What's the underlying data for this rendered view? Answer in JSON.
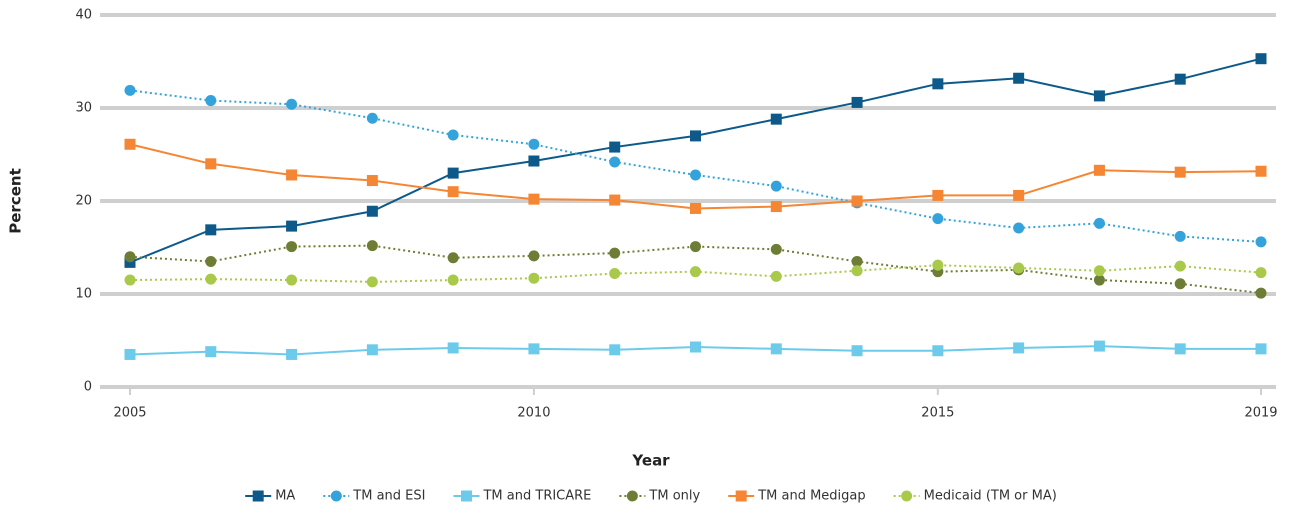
{
  "chart_data": {
    "type": "line",
    "x_label": "Year",
    "y_label": "Percent",
    "x": [
      2005,
      2006,
      2007,
      2008,
      2009,
      2010,
      2011,
      2012,
      2013,
      2014,
      2015,
      2016,
      2017,
      2018,
      2019
    ],
    "xlim": [
      2005,
      2019
    ],
    "xticks": [
      2005,
      2010,
      2015,
      2019
    ],
    "ylim": [
      0,
      40
    ],
    "yticks": [
      0,
      10,
      20,
      30,
      40
    ],
    "grid": true,
    "legend": "bottom",
    "series": [
      {
        "name": "MA",
        "color": "#0d5a8a",
        "marker": "square",
        "dashed": false,
        "values": [
          13.4,
          16.9,
          17.3,
          18.9,
          23.0,
          24.3,
          25.8,
          27.0,
          28.8,
          30.6,
          32.6,
          33.2,
          31.3,
          33.1,
          35.3
        ]
      },
      {
        "name": "TM and ESI",
        "color": "#34a3dc",
        "marker": "circle",
        "dashed": true,
        "values": [
          31.9,
          30.8,
          30.4,
          28.9,
          27.1,
          26.1,
          24.2,
          22.8,
          21.6,
          19.8,
          18.1,
          17.1,
          17.6,
          16.2,
          15.6
        ]
      },
      {
        "name": "TM and TRICARE",
        "color": "#6ccbeb",
        "marker": "square",
        "dashed": false,
        "values": [
          3.5,
          3.8,
          3.5,
          4.0,
          4.2,
          4.1,
          4.0,
          4.3,
          4.1,
          3.9,
          3.9,
          4.2,
          4.4,
          4.1,
          4.1
        ]
      },
      {
        "name": "TM only",
        "color": "#6d7d35",
        "marker": "circle",
        "dashed": true,
        "values": [
          14.0,
          13.5,
          15.1,
          15.2,
          13.9,
          14.1,
          14.4,
          15.1,
          14.8,
          13.5,
          12.4,
          12.6,
          11.5,
          11.1,
          10.1
        ]
      },
      {
        "name": "TM and Medigap",
        "color": "#f58634",
        "marker": "square",
        "dashed": false,
        "values": [
          26.1,
          24.0,
          22.8,
          22.2,
          21.0,
          20.2,
          20.1,
          19.2,
          19.4,
          20.0,
          20.6,
          20.6,
          23.3,
          23.1,
          23.2
        ]
      },
      {
        "name": "Medicaid (TM or MA)",
        "color": "#a9c94a",
        "marker": "circle",
        "dashed": true,
        "values": [
          11.5,
          11.6,
          11.5,
          11.3,
          11.5,
          11.7,
          12.2,
          12.4,
          11.9,
          12.5,
          13.1,
          12.8,
          12.5,
          13.0,
          12.3
        ]
      }
    ]
  }
}
